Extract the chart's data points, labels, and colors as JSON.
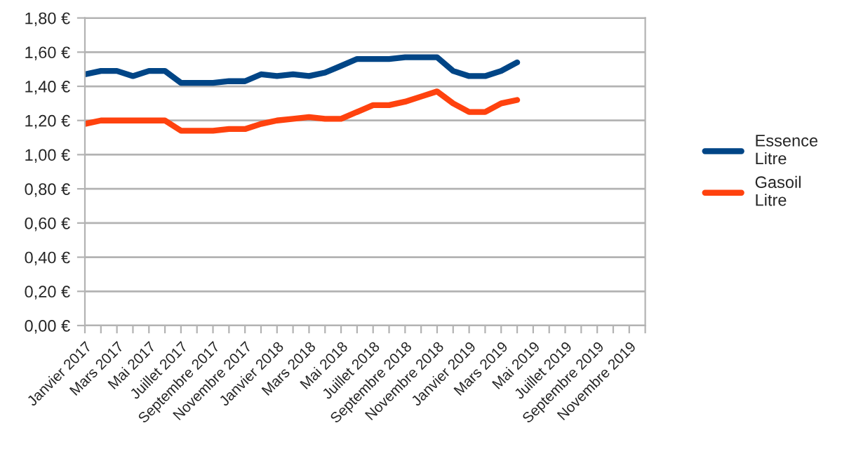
{
  "chart_data": {
    "type": "line",
    "categories": [
      "Janvier 2017",
      null,
      "Mars 2017",
      null,
      "Mai 2017",
      null,
      "Juillet 2017",
      null,
      "Septembre 2017",
      null,
      "Novembre 2017",
      null,
      "Janvier 2018",
      null,
      "Mars 2018",
      null,
      "Mai 2018",
      null,
      "Juillet 2018",
      null,
      "Septembre 2018",
      null,
      "Novembre 2018",
      null,
      "Janvier 2019",
      null,
      "Mars 2019",
      null,
      "Mai 2019",
      null,
      "Juillet 2019",
      null,
      "Septembre 2019",
      null,
      "Novembre 2019",
      null
    ],
    "series": [
      {
        "name": "Essence\nLitre",
        "color": "#004586",
        "values": [
          1.47,
          1.49,
          1.49,
          1.46,
          1.49,
          1.49,
          1.42,
          1.42,
          1.42,
          1.43,
          1.43,
          1.47,
          1.46,
          1.47,
          1.46,
          1.48,
          1.52,
          1.56,
          1.56,
          1.56,
          1.57,
          1.57,
          1.57,
          1.49,
          1.46,
          1.46,
          1.49,
          1.54,
          null,
          null,
          null,
          null,
          null,
          null,
          null,
          null
        ]
      },
      {
        "name": "Gasoil\nLitre",
        "color": "#ff420e",
        "values": [
          1.18,
          1.2,
          1.2,
          1.2,
          1.2,
          1.2,
          1.14,
          1.14,
          1.14,
          1.15,
          1.15,
          1.18,
          1.2,
          1.21,
          1.22,
          1.21,
          1.21,
          1.25,
          1.29,
          1.29,
          1.31,
          1.34,
          1.37,
          1.3,
          1.25,
          1.25,
          1.3,
          1.32,
          null,
          null,
          null,
          null,
          null,
          null,
          null,
          null
        ]
      }
    ],
    "ylim": [
      0,
      1.8
    ],
    "yticks": [
      {
        "value": 0,
        "label": "0,00 €"
      },
      {
        "value": 0.2,
        "label": "0,20 €"
      },
      {
        "value": 0.4,
        "label": "0,40 €"
      },
      {
        "value": 0.6,
        "label": "0,60 €"
      },
      {
        "value": 0.8,
        "label": "0,80 €"
      },
      {
        "value": 1.0,
        "label": "1,00 €"
      },
      {
        "value": 1.2,
        "label": "1,20 €"
      },
      {
        "value": 1.4,
        "label": "1,40 €"
      },
      {
        "value": 1.6,
        "label": "1,60 €"
      },
      {
        "value": 1.8,
        "label": "1,80 €"
      }
    ],
    "grid": "y",
    "legend": "right",
    "marker": "none",
    "line_style": "solid"
  }
}
